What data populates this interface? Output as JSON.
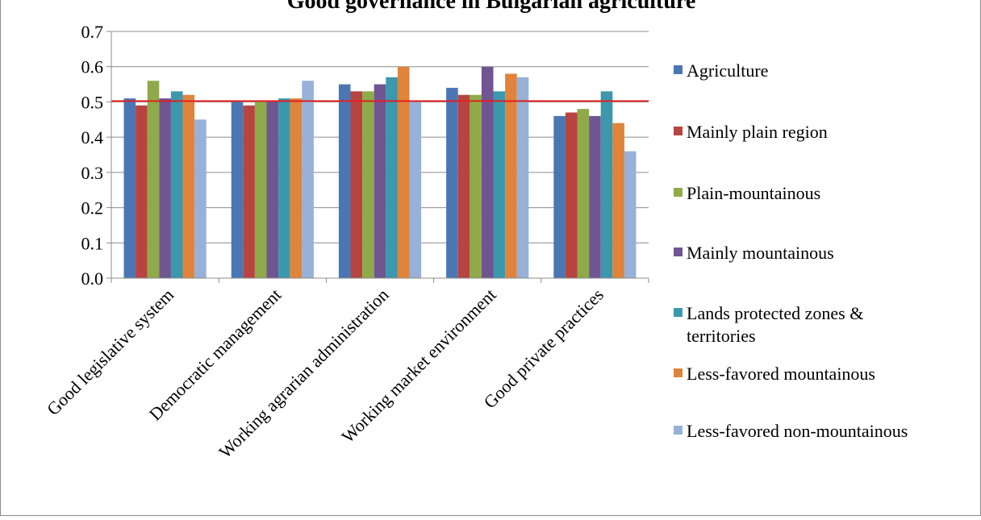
{
  "chart_data": {
    "type": "bar",
    "title": "Good governance in Bulgarian agriculture",
    "xlabel": "",
    "ylabel": "",
    "ylim": [
      0,
      0.7
    ],
    "yticks": [
      "0.0",
      "0.1",
      "0.2",
      "0.3",
      "0.4",
      "0.5",
      "0.6",
      "0.7"
    ],
    "grid": true,
    "legend_position": "right",
    "reference_line": {
      "value": 0.5,
      "color": "#e02020"
    },
    "categories": [
      "Good legislative system",
      "Democratic management",
      "Working agrarian administration",
      "Working market environment",
      "Good private practices"
    ],
    "series": [
      {
        "name": "Agriculture",
        "color": "#4a77b4",
        "values": [
          0.51,
          0.5,
          0.55,
          0.54,
          0.46
        ]
      },
      {
        "name": "Mainly plain region",
        "color": "#b84441",
        "values": [
          0.49,
          0.49,
          0.53,
          0.52,
          0.47
        ]
      },
      {
        "name": "Plain-mountainous",
        "color": "#8eaa4a",
        "values": [
          0.56,
          0.5,
          0.53,
          0.52,
          0.48
        ]
      },
      {
        "name": "Mainly mountainous",
        "color": "#6f5592",
        "values": [
          0.51,
          0.5,
          0.55,
          0.6,
          0.46
        ]
      },
      {
        "name": "Lands protected zones & territories",
        "color": "#3c98ad",
        "values": [
          0.53,
          0.51,
          0.57,
          0.53,
          0.53
        ]
      },
      {
        "name": "Less-favored mountainous",
        "color": "#e0843b",
        "values": [
          0.52,
          0.51,
          0.6,
          0.58,
          0.44
        ]
      },
      {
        "name": "Less-favored non-mountainous",
        "color": "#97b1d8",
        "values": [
          0.45,
          0.56,
          0.5,
          0.57,
          0.36
        ]
      }
    ]
  }
}
